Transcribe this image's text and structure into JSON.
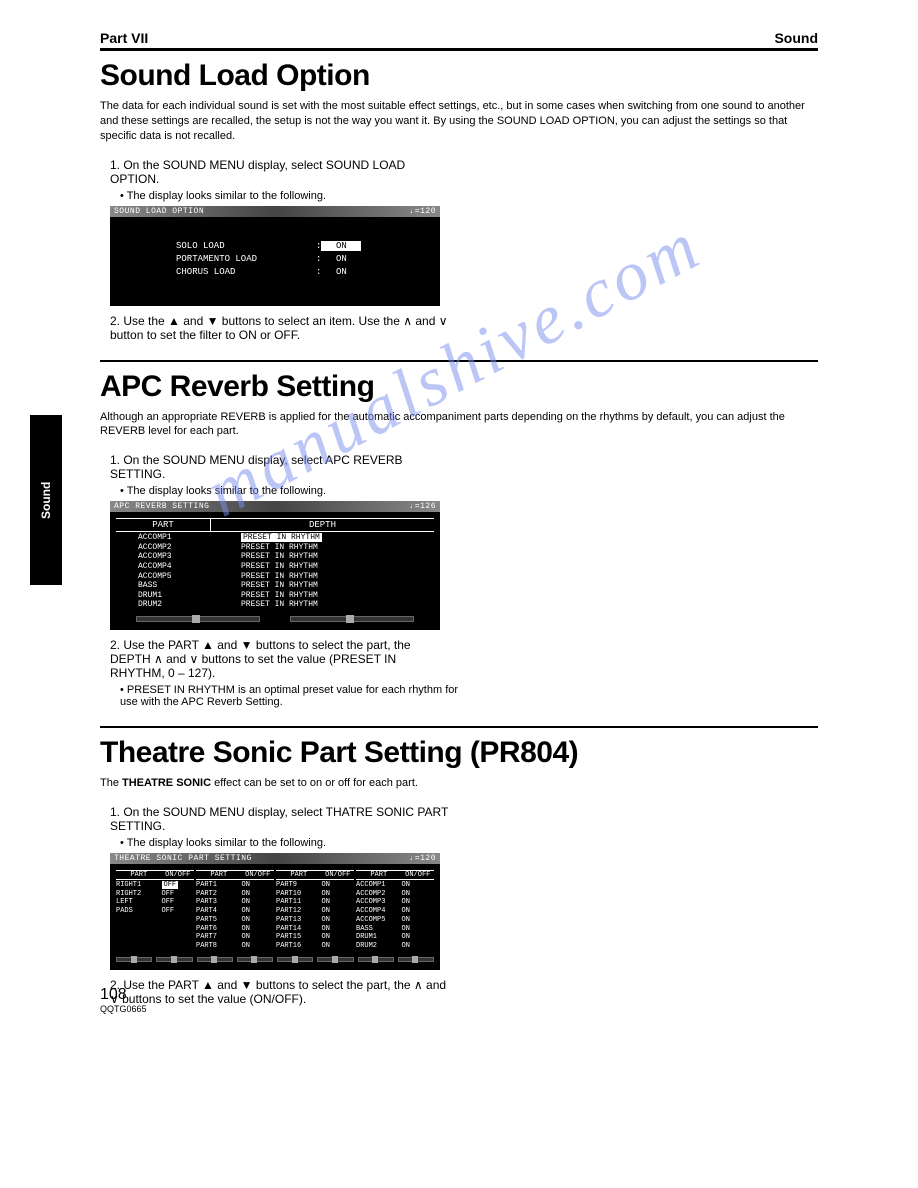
{
  "header": {
    "left": "Part VII",
    "right": "Sound"
  },
  "sideTab": "Sound",
  "watermark": "manualshive.com",
  "section1": {
    "title": "Sound Load Option",
    "intro": "The data for each individual sound is set with the most suitable effect settings, etc., but in some cases when switching from one sound to another and these settings are recalled, the setup is not the way you want it. By using the SOUND LOAD OPTION, you can adjust the settings so that specific data is not recalled.",
    "step1": "1. On the SOUND MENU display, select SOUND LOAD OPTION.",
    "bullet1": "• The display looks similar to the following.",
    "screen": {
      "title": "SOUND LOAD OPTION",
      "tempo": "♩=120",
      "rows": [
        {
          "label": "SOLO LOAD",
          "value": "ON",
          "highlight": true
        },
        {
          "label": "PORTAMENTO LOAD",
          "value": "ON",
          "highlight": false
        },
        {
          "label": "CHORUS LOAD",
          "value": "ON",
          "highlight": false
        }
      ]
    },
    "step2": "2. Use the ▲ and ▼ buttons to select an item. Use the ∧ and ∨ button to set the filter to ON or OFF."
  },
  "section2": {
    "title": "APC Reverb Setting",
    "intro": "Although an appropriate REVERB is applied for the automatic accompaniment parts depending on the rhythms by default, you can adjust the REVERB level for each part.",
    "step1": "1. On the SOUND MENU display, select APC REVERB SETTING.",
    "bullet1": "• The display looks similar to the following.",
    "screen": {
      "title": "APC REVERB SETTING",
      "tempo": "♩=126",
      "colPart": "PART",
      "colDepth": "DEPTH",
      "rows": [
        {
          "part": "ACCOMP1",
          "depth": "PRESET IN RHYTHM",
          "highlight": true
        },
        {
          "part": "ACCOMP2",
          "depth": "PRESET IN RHYTHM"
        },
        {
          "part": "ACCOMP3",
          "depth": "PRESET IN RHYTHM"
        },
        {
          "part": "ACCOMP4",
          "depth": "PRESET IN RHYTHM"
        },
        {
          "part": "ACCOMP5",
          "depth": "PRESET IN RHYTHM"
        },
        {
          "part": "BASS",
          "depth": "PRESET IN RHYTHM"
        },
        {
          "part": "DRUM1",
          "depth": "PRESET IN RHYTHM"
        },
        {
          "part": "DRUM2",
          "depth": "PRESET IN RHYTHM"
        }
      ]
    },
    "step2": "2. Use the PART ▲ and ▼ buttons to select the part, the DEPTH ∧ and ∨ buttons to set the value (PRESET IN RHYTHM, 0 – 127).",
    "bullet2": "• PRESET IN RHYTHM is an optimal preset value for each rhythm for use with the APC Reverb Setting."
  },
  "section3": {
    "title": "Theatre Sonic Part Setting (PR804)",
    "introPrefix": "The ",
    "introBold": "THEATRE SONIC",
    "introRest": " effect can be set to on or off for each part.",
    "step1": "1. On the SOUND MENU display, select THATRE SONIC PART SETTING.",
    "bullet1": "• The display looks similar to the following.",
    "screen": {
      "title": "THEATRE SONIC PART SETTING",
      "tempo": "♩=120",
      "headPart": "PART",
      "headOnOff": "ON/OFF",
      "col1": [
        {
          "p": "RIGHT1",
          "v": "OFF",
          "hl": true
        },
        {
          "p": "RIGHT2",
          "v": "OFF"
        },
        {
          "p": "LEFT",
          "v": "OFF"
        },
        {
          "p": "PADS",
          "v": "OFF"
        }
      ],
      "col2": [
        {
          "p": "PART1",
          "v": "ON"
        },
        {
          "p": "PART2",
          "v": "ON"
        },
        {
          "p": "PART3",
          "v": "ON"
        },
        {
          "p": "PART4",
          "v": "ON"
        },
        {
          "p": "PART5",
          "v": "ON"
        },
        {
          "p": "PART6",
          "v": "ON"
        },
        {
          "p": "PART7",
          "v": "ON"
        },
        {
          "p": "PART8",
          "v": "ON"
        }
      ],
      "col3": [
        {
          "p": "PART9",
          "v": "ON"
        },
        {
          "p": "PART10",
          "v": "ON"
        },
        {
          "p": "PART11",
          "v": "ON"
        },
        {
          "p": "PART12",
          "v": "ON"
        },
        {
          "p": "PART13",
          "v": "ON"
        },
        {
          "p": "PART14",
          "v": "ON"
        },
        {
          "p": "PART15",
          "v": "ON"
        },
        {
          "p": "PART16",
          "v": "ON"
        }
      ],
      "col4": [
        {
          "p": "ACCOMP1",
          "v": "ON"
        },
        {
          "p": "ACCOMP2",
          "v": "ON"
        },
        {
          "p": "ACCOMP3",
          "v": "ON"
        },
        {
          "p": "ACCOMP4",
          "v": "ON"
        },
        {
          "p": "ACCOMP5",
          "v": "ON"
        },
        {
          "p": "BASS",
          "v": "ON"
        },
        {
          "p": "DRUM1",
          "v": "ON"
        },
        {
          "p": "DRUM2",
          "v": "ON"
        }
      ]
    },
    "step2": "2. Use the PART ▲ and ▼ buttons to select the part, the ∧ and ∨ buttons to set the value (ON/OFF)."
  },
  "footer": {
    "pageNum": "108",
    "code": "QQTG0665"
  }
}
